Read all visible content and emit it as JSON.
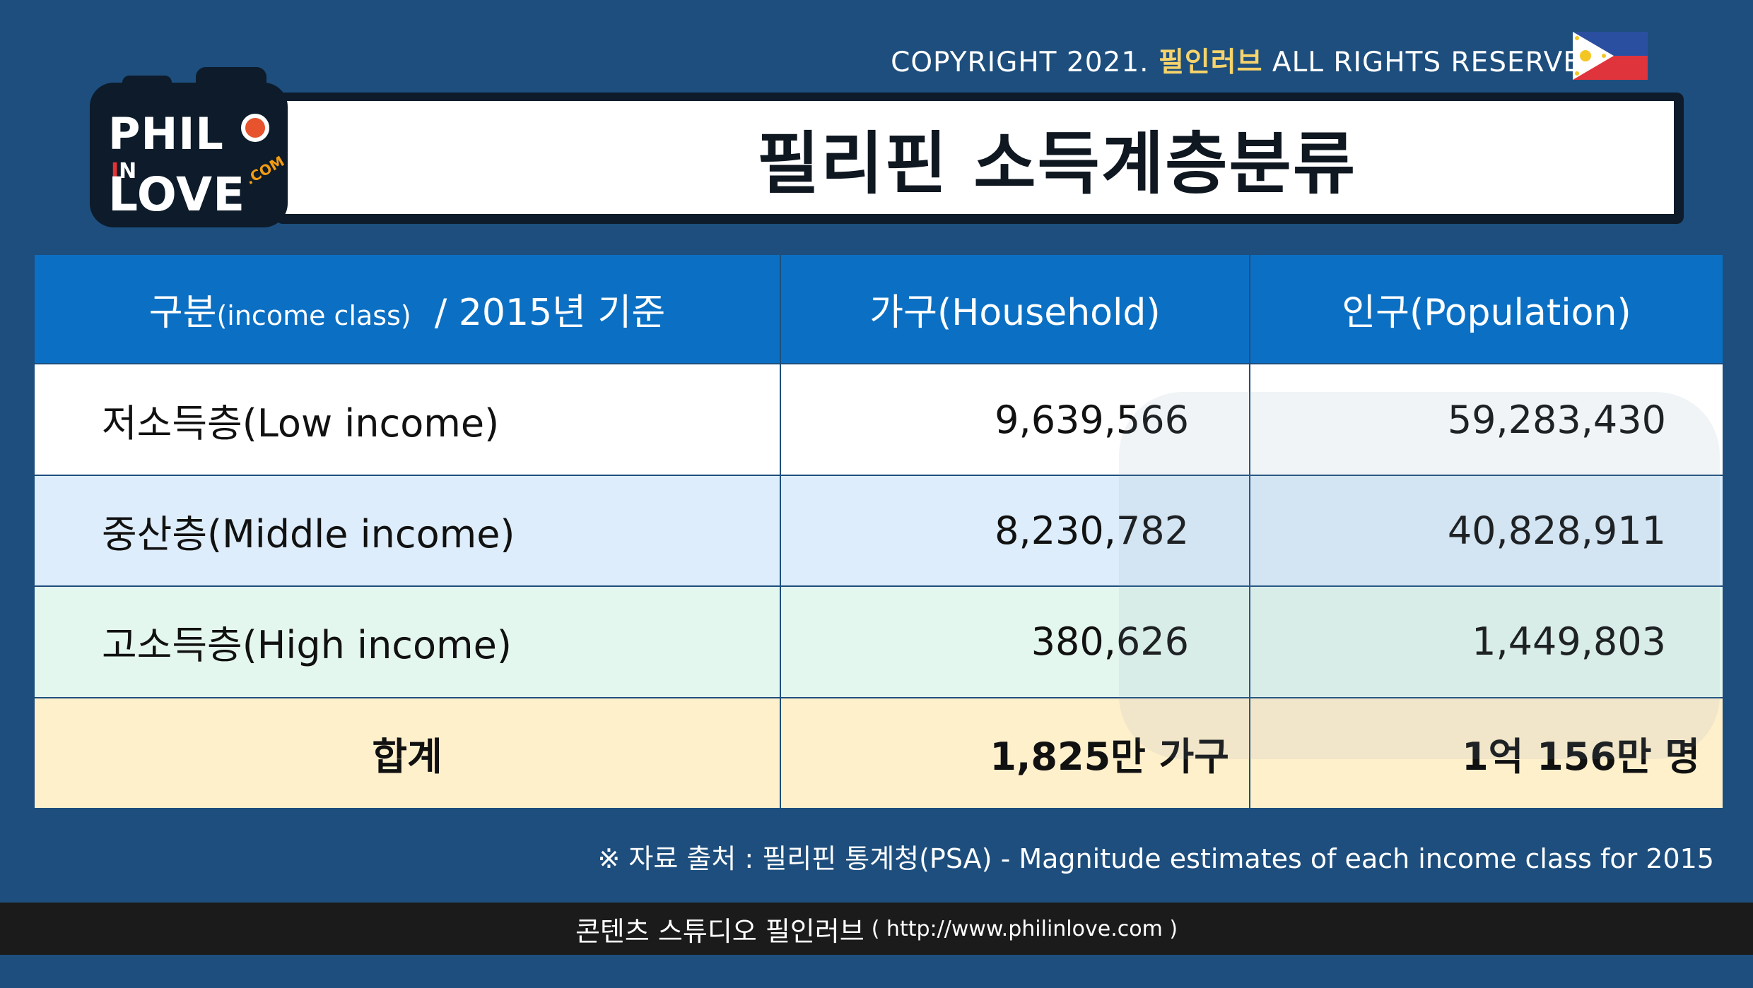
{
  "header": {
    "copyright_prefix": "COPYRIGHT 2021.",
    "copyright_brand": "필인러브",
    "copyright_suffix": "ALL RIGHTS RESERVED",
    "flag_icon": "philippines-flag-icon"
  },
  "logo": {
    "phil": "PHIL",
    "in": "IN",
    "love": "LOVE",
    "com": ".COM"
  },
  "title": "필리핀 소득계층분류",
  "table": {
    "header": {
      "class_label": "구분",
      "class_label_en": "(income class)",
      "class_year": "/ 2015년 기준",
      "household": "가구(Household)",
      "population": "인구(Population)"
    },
    "rows": [
      {
        "label": "저소득층(Low income)",
        "household": "9,639,566",
        "population": "59,283,430"
      },
      {
        "label": "중산층(Middle income)",
        "household": "8,230,782",
        "population": "40,828,911"
      },
      {
        "label": "고소득층(High income)",
        "household": "380,626",
        "population": "1,449,803"
      }
    ],
    "total": {
      "label": "합계",
      "household": "1,825만 가구",
      "population": "1억 156만 명"
    }
  },
  "watermark": {
    "text": "PHIL IN LOVE .COM"
  },
  "source": "※ 자료 출처 : 필리핀 통계청(PSA) - Magnitude estimates of each income class for 2015",
  "footer": {
    "studio": "콘텐츠 스튜디오 필인러브",
    "url": "( http://www.philinlove.com )"
  },
  "colors": {
    "background": "#1d4e7d",
    "header_blue": "#0b70c4",
    "row_low": "#ffffff",
    "row_middle": "#ddedfb",
    "row_high": "#e4f7ef",
    "row_total": "#fff0cc",
    "brand_yellow": "#f6d36b"
  }
}
